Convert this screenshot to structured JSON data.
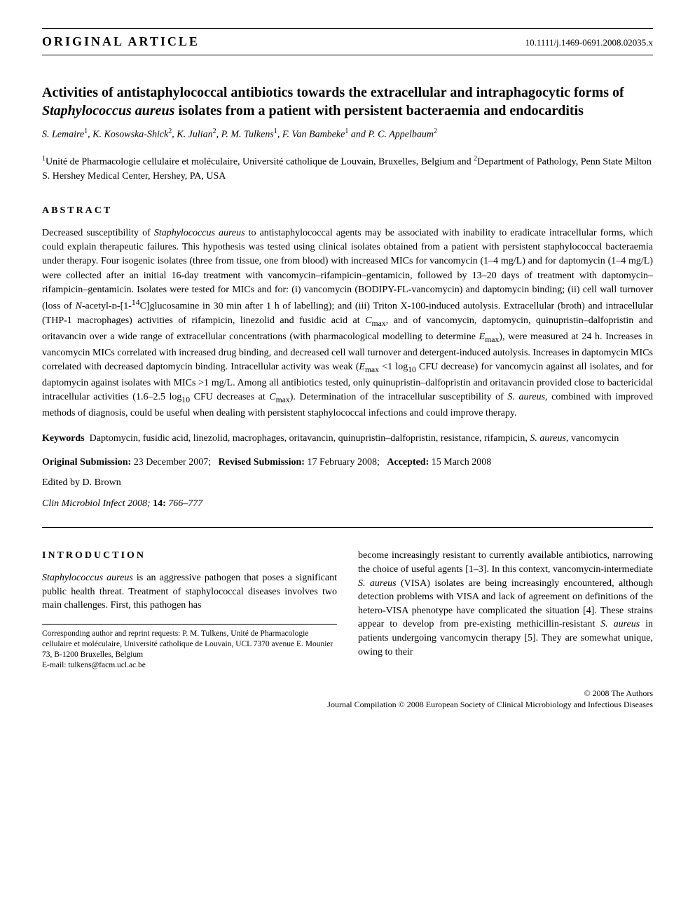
{
  "header": {
    "article_type": "ORIGINAL ARTICLE",
    "doi": "10.1111/j.1469-0691.2008.02035.x"
  },
  "title_html": "Activities of antistaphylococcal antibiotics towards the extracellular and intraphagocytic forms of <em>Staphylococcus aureus</em> isolates from a patient with persistent bacteraemia and endocarditis",
  "authors_html": "S. Lemaire<sup>1</sup>, K. Kosowska-Shick<sup>2</sup>, K. Julian<sup>2</sup>, P. M. Tulkens<sup>1</sup>, F. Van Bambeke<sup>1</sup> and P. C. Appelbaum<sup>2</sup>",
  "affiliations_html": "<sup>1</sup>Unité de Pharmacologie cellulaire et moléculaire, Université catholique de Louvain, Bruxelles, Belgium and <sup>2</sup>Department of Pathology, Penn State Milton S. Hershey Medical Center, Hershey, PA, USA",
  "abstract": {
    "heading": "ABSTRACT",
    "text_html": "Decreased susceptibility of <em>Staphylococcus aureus</em> to antistaphylococcal agents may be associated with inability to eradicate intracellular forms, which could explain therapeutic failures. This hypothesis was tested using clinical isolates obtained from a patient with persistent staphylococcal bacteraemia under therapy. Four isogenic isolates (three from tissue, one from blood) with increased MICs for vancomycin (1–4 mg/L) and for daptomycin (1–4 mg/L) were collected after an initial 16-day treatment with vancomycin–rifampicin–gentamicin, followed by 13–20 days of treatment with daptomycin–rifampicin–gentamicin. Isolates were tested for MICs and for: (i) vancomycin (BODIPY-FL-vancomycin) and daptomycin binding; (ii) cell wall turnover (loss of <em>N</em>-acetyl-ᴅ-[1-<sup>14</sup>C]glucosamine in 30 min after 1 h of labelling); and (iii) Triton X-100-induced autolysis. Extracellular (broth) and intracellular (THP-1 macrophages) activities of rifampicin, linezolid and fusidic acid at <em>C</em><sub>max</sub>, and of vancomycin, daptomycin, quinupristin–dalfopristin and oritavancin over a wide range of extracellular concentrations (with pharmacological modelling to determine <em>E</em><sub>max</sub>), were measured at 24 h. Increases in vancomycin MICs correlated with increased drug binding, and decreased cell wall turnover and detergent-induced autolysis. Increases in daptomycin MICs correlated with decreased daptomycin binding. Intracellular activity was weak (<em>E</em><sub>max</sub> &lt;1 log<sub>10</sub> CFU decrease) for vancomycin against all isolates, and for daptomycin against isolates with MICs &gt;1 mg/L. Among all antibiotics tested, only quinupristin–dalfopristin and oritavancin provided close to bactericidal intracellular activities (1.6–2.5 log<sub>10</sub> CFU decreases at <em>C</em><sub>max</sub>). Determination of the intracellular susceptibility of <em>S. aureus</em>, combined with improved methods of diagnosis, could be useful when dealing with persistent staphylococcal infections and could improve therapy."
  },
  "keywords": {
    "label": "Keywords",
    "text_html": "Daptomycin, fusidic acid, linezolid, macrophages, oritavancin, quinupristin–dalfopristin, resistance, rifampicin, <em>S. aureus</em>, vancomycin"
  },
  "dates": {
    "original_label": "Original Submission:",
    "original_value": "23 December 2007;",
    "revised_label": "Revised Submission:",
    "revised_value": "17 February 2008;",
    "accepted_label": "Accepted:",
    "accepted_value": "15 March 2008"
  },
  "edited_by": "Edited by D. Brown",
  "citation_html": "Clin Microbiol Infect 2008; <span class='vol'>14:</span> 766–777",
  "introduction": {
    "heading": "INTRODUCTION",
    "col1_html": "<em>Staphylococcus aureus</em> is an aggressive pathogen that poses a significant public health threat. Treatment of staphylococcal diseases involves two main challenges. First, this pathogen has",
    "col2_html": "become increasingly resistant to currently available antibiotics, narrowing the choice of useful agents [1–3]. In this context, vancomycin-intermediate <em>S. aureus</em> (VISA) isolates are being increasingly encountered, although detection problems with VISA and lack of agreement on definitions of the hetero-VISA phenotype have complicated the situation [4]. These strains appear to develop from pre-existing methicillin-resistant <em>S. aureus</em> in patients undergoing vancomycin therapy [5]. They are somewhat unique, owing to their"
  },
  "corresponding": {
    "text": "Corresponding author and reprint requests: P. M. Tulkens, Unité de Pharmacologie cellulaire et moléculaire, Université catholique de Louvain, UCL 7370 avenue E. Mounier 73, B-1200 Bruxelles, Belgium",
    "email_label": "E-mail:",
    "email": "tulkens@facm.ucl.ac.be"
  },
  "footer": {
    "line1": "© 2008 The Authors",
    "line2": "Journal Compilation © 2008 European Society of Clinical Microbiology and Infectious Diseases"
  }
}
